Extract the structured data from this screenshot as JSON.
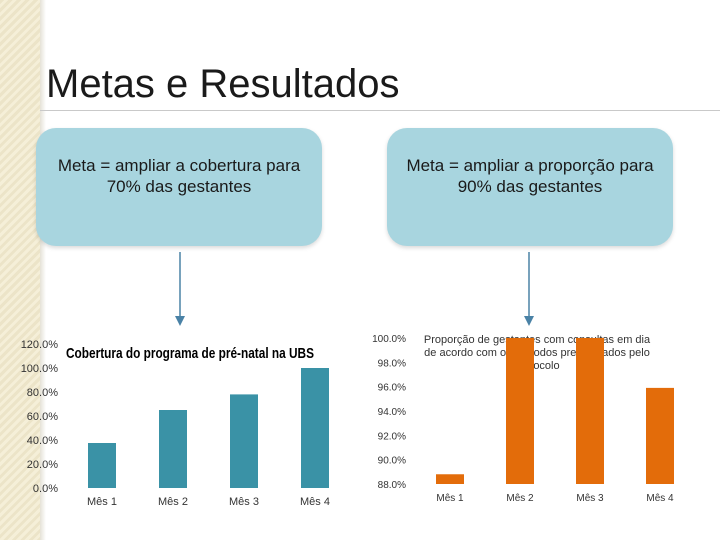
{
  "slide": {
    "title": "Metas e Resultados",
    "goal_left": "Meta = ampliar a cobertura para 70% das gestantes",
    "goal_right": "Meta = ampliar a proporção para 90% das gestantes"
  },
  "colors": {
    "goal_box": "#a8d5df",
    "arrow": "#4a82a6",
    "left_bars": "#3a92a6",
    "right_bars": "#e36c0a"
  },
  "chart_data": [
    {
      "type": "bar",
      "title": "Cobertura do programa de pré-natal na UBS",
      "categories": [
        "Mês 1",
        "Mês 2",
        "Mês 3",
        "Mês 4"
      ],
      "values": [
        37.5,
        65.0,
        78.0,
        100.0
      ],
      "ylim": [
        0,
        120
      ],
      "yticks": [
        "0.0%",
        "20.0%",
        "40.0%",
        "60.0%",
        "80.0%",
        "100.0%",
        "120.0%"
      ],
      "xlabel": "",
      "ylabel": "",
      "grid": false,
      "legend": "none"
    },
    {
      "type": "bar",
      "title": "Proporção de gestantes com consultas em dia de acordo com os períodos preconizados pelo protocolo",
      "categories": [
        "Mês 1",
        "Mês 2",
        "Mês 3",
        "Mês 4"
      ],
      "values": [
        88.8,
        100.0,
        100.0,
        95.9
      ],
      "ylim": [
        88,
        100
      ],
      "yticks": [
        "88.0%",
        "90.0%",
        "92.0%",
        "94.0%",
        "96.0%",
        "98.0%",
        "100.0%"
      ],
      "xlabel": "",
      "ylabel": "",
      "grid": false,
      "legend": "none"
    }
  ]
}
